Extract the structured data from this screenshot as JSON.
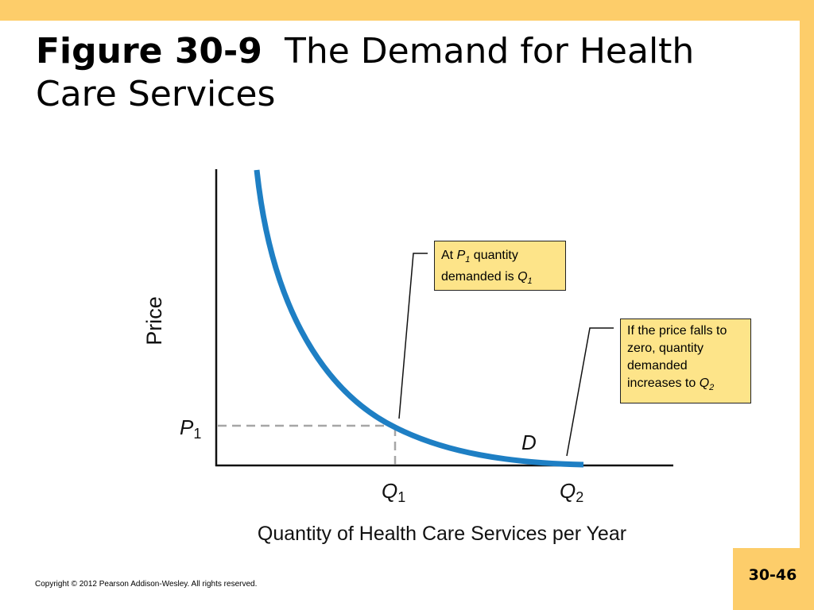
{
  "slide": {
    "figure_label": "Figure 30-9",
    "title": "The Demand for Health Care Services",
    "copyright": "Copyright © 2012 Pearson Addison-Wesley. All rights reserved.",
    "page_number": "30-46"
  },
  "diagram": {
    "y_axis_label": "Price",
    "x_axis_label": "Quantity of Health Care Services per Year",
    "price_label_base": "P",
    "price_label_sub": "1",
    "q1_label_base": "Q",
    "q1_label_sub": "1",
    "q2_label_base": "Q",
    "q2_label_sub": "2",
    "curve_label": "D",
    "curve_color": "#1e7fc4",
    "guide_color": "#a6a6a6",
    "callout_fill": "#fde489"
  },
  "callouts": {
    "c1": {
      "t1": "At ",
      "p": "P",
      "psub": "1",
      "t2": " quantity demanded is ",
      "q": "Q",
      "qsub": "1"
    },
    "c2": {
      "t1": "If the price falls to zero, quantity demanded increases to ",
      "q": "Q",
      "qsub": "2"
    }
  }
}
